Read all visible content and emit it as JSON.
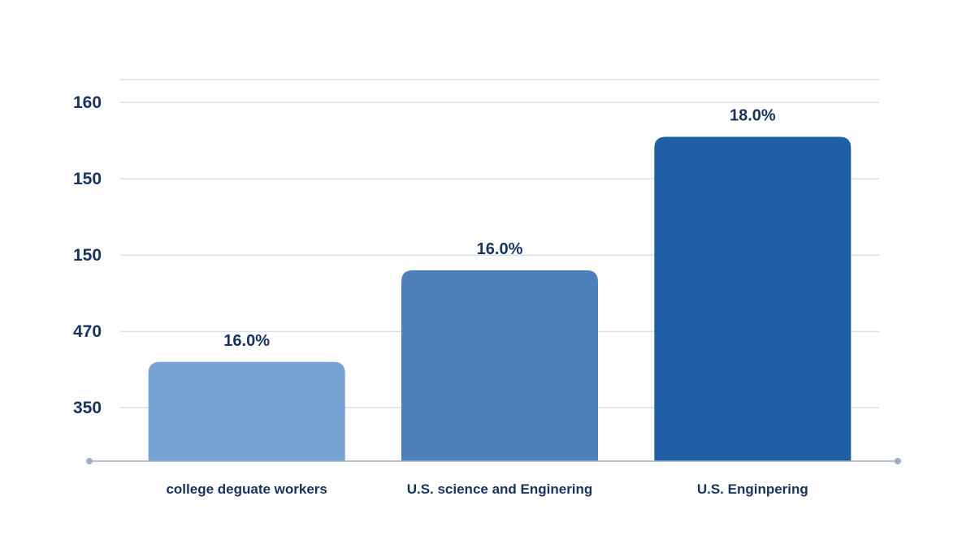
{
  "chart_data": {
    "type": "bar",
    "title": "",
    "xlabel": "",
    "ylabel": "",
    "grid": true,
    "ylim": [
      0,
      5
    ],
    "y_ticks": [
      {
        "label": "160",
        "position": 4.7
      },
      {
        "label": "150",
        "position": 3.7
      },
      {
        "label": "150",
        "position": 2.7
      },
      {
        "label": "470",
        "position": 1.7
      },
      {
        "label": "350",
        "position": 0.7
      }
    ],
    "categories": [
      "college deguate workers",
      "U.S. science and Enginering",
      "U.S. Enginpering"
    ],
    "values": [
      1.3,
      2.5,
      4.25
    ],
    "data_labels": [
      "16.0%",
      "16.0%",
      "18.0%"
    ],
    "colors": [
      "#76a3d3",
      "#4d80ba",
      "#205ea6"
    ],
    "gridline_color": "#c9d6e6",
    "text_color": "#17325f"
  }
}
